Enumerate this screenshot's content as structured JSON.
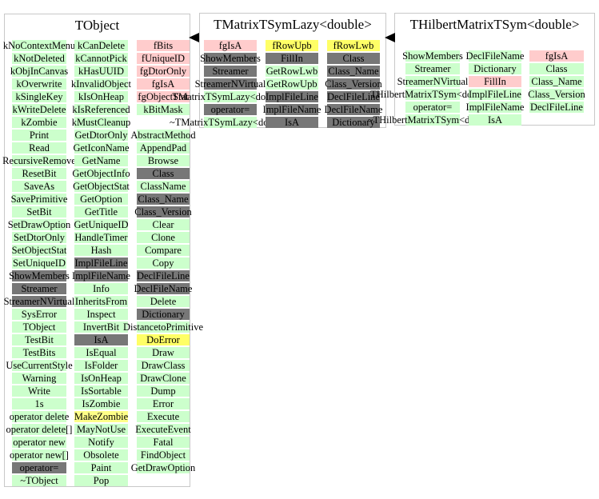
{
  "colors": {
    "function": "#ccffcc",
    "data_member": "#ffcccc",
    "inherited": "#777777",
    "overridden": "#ffff66",
    "box_border": "#c8c8c8"
  },
  "classes": [
    {
      "id": "tobject",
      "title": "TObject",
      "columns": [
        [
          {
            "t": "enum",
            "text": "kNoContextMenu"
          },
          {
            "t": "enum",
            "text": "kNotDeleted"
          },
          {
            "t": "enum",
            "text": "kObjInCanvas"
          },
          {
            "t": "enum",
            "text": "kOverwrite"
          },
          {
            "t": "enum",
            "text": "kSingleKey"
          },
          {
            "t": "enum",
            "text": "kWriteDelete"
          },
          {
            "t": "enum",
            "text": "kZombie"
          },
          {
            "t": "func",
            "text": "Print"
          },
          {
            "t": "func",
            "text": "Read"
          },
          {
            "t": "func",
            "text": "RecursiveRemove"
          },
          {
            "t": "func",
            "text": "ResetBit"
          },
          {
            "t": "func",
            "text": "SaveAs"
          },
          {
            "t": "func",
            "text": "SavePrimitive"
          },
          {
            "t": "func",
            "text": "SetBit"
          },
          {
            "t": "func",
            "text": "SetDrawOption"
          },
          {
            "t": "func",
            "text": "SetDtorOnly"
          },
          {
            "t": "func",
            "text": "SetObjectStat"
          },
          {
            "t": "func",
            "text": "SetUniqueID"
          },
          {
            "t": "inh",
            "text": "ShowMembers"
          },
          {
            "t": "inh",
            "text": "Streamer"
          },
          {
            "t": "inh",
            "text": "StreamerNVirtual"
          },
          {
            "t": "func",
            "text": "SysError"
          },
          {
            "t": "func",
            "text": "TObject"
          },
          {
            "t": "func",
            "text": "TestBit"
          },
          {
            "t": "func",
            "text": "TestBits"
          },
          {
            "t": "func",
            "text": "UseCurrentStyle"
          },
          {
            "t": "func",
            "text": "Warning"
          },
          {
            "t": "func",
            "text": "Write"
          },
          {
            "t": "func",
            "text": "1s"
          },
          {
            "t": "func",
            "text": "operator delete"
          },
          {
            "t": "func",
            "text": "operator delete[]"
          },
          {
            "t": "func",
            "text": "operator new"
          },
          {
            "t": "func",
            "text": "operator new[]"
          },
          {
            "t": "inh",
            "text": "operator="
          },
          {
            "t": "func",
            "text": "~TObject"
          }
        ],
        [
          {
            "t": "enum",
            "text": "kCanDelete"
          },
          {
            "t": "enum",
            "text": "kCannotPick"
          },
          {
            "t": "enum",
            "text": "kHasUUID"
          },
          {
            "t": "enum",
            "text": "kInvalidObject"
          },
          {
            "t": "enum",
            "text": "kIsOnHeap"
          },
          {
            "t": "enum",
            "text": "kIsReferenced"
          },
          {
            "t": "enum",
            "text": "kMustCleanup"
          },
          {
            "t": "func",
            "text": "GetDtorOnly"
          },
          {
            "t": "func",
            "text": "GetIconName"
          },
          {
            "t": "func",
            "text": "GetName"
          },
          {
            "t": "func",
            "text": "GetObjectInfo"
          },
          {
            "t": "func",
            "text": "GetObjectStat"
          },
          {
            "t": "func",
            "text": "GetOption"
          },
          {
            "t": "func",
            "text": "GetTitle"
          },
          {
            "t": "func",
            "text": "GetUniqueID"
          },
          {
            "t": "func",
            "text": "HandleTimer"
          },
          {
            "t": "func",
            "text": "Hash"
          },
          {
            "t": "inh",
            "text": "ImplFileLine"
          },
          {
            "t": "inh",
            "text": "ImplFileName"
          },
          {
            "t": "func",
            "text": "Info"
          },
          {
            "t": "func",
            "text": "InheritsFrom"
          },
          {
            "t": "func",
            "text": "Inspect"
          },
          {
            "t": "func",
            "text": "InvertBit"
          },
          {
            "t": "inh",
            "text": "IsA"
          },
          {
            "t": "func",
            "text": "IsEqual"
          },
          {
            "t": "func",
            "text": "IsFolder"
          },
          {
            "t": "func",
            "text": "IsOnHeap"
          },
          {
            "t": "func",
            "text": "IsSortable"
          },
          {
            "t": "func",
            "text": "IsZombie"
          },
          {
            "t": "hl",
            "text": "MakeZombie"
          },
          {
            "t": "func",
            "text": "MayNotUse"
          },
          {
            "t": "func",
            "text": "Notify"
          },
          {
            "t": "func",
            "text": "Obsolete"
          },
          {
            "t": "func",
            "text": "Paint"
          },
          {
            "t": "func",
            "text": "Pop"
          }
        ],
        [
          {
            "t": "data",
            "text": "fBits"
          },
          {
            "t": "data",
            "text": "fUniqueID"
          },
          {
            "t": "data",
            "text": "fgDtorOnly"
          },
          {
            "t": "data",
            "text": "fgIsA"
          },
          {
            "t": "data",
            "text": "fgObjectStat"
          },
          {
            "t": "func",
            "text": "kBitMask"
          },
          {
            "t": "none",
            "text": ""
          },
          {
            "t": "func",
            "text": "AbstractMethod"
          },
          {
            "t": "func",
            "text": "AppendPad"
          },
          {
            "t": "func",
            "text": "Browse"
          },
          {
            "t": "inh",
            "text": "Class"
          },
          {
            "t": "func",
            "text": "ClassName"
          },
          {
            "t": "inh",
            "text": "Class_Name"
          },
          {
            "t": "inh",
            "text": "Class_Version"
          },
          {
            "t": "func",
            "text": "Clear"
          },
          {
            "t": "func",
            "text": "Clone"
          },
          {
            "t": "func",
            "text": "Compare"
          },
          {
            "t": "func",
            "text": "Copy"
          },
          {
            "t": "inh",
            "text": "DeclFileLine"
          },
          {
            "t": "inh",
            "text": "DeclFileName"
          },
          {
            "t": "func",
            "text": "Delete"
          },
          {
            "t": "inh",
            "text": "Dictionary"
          },
          {
            "t": "func",
            "text": "DistancetoPrimitive"
          },
          {
            "t": "pure",
            "text": "DoError"
          },
          {
            "t": "func",
            "text": "Draw"
          },
          {
            "t": "func",
            "text": "DrawClass"
          },
          {
            "t": "func",
            "text": "DrawClone"
          },
          {
            "t": "func",
            "text": "Dump"
          },
          {
            "t": "func",
            "text": "Error"
          },
          {
            "t": "func",
            "text": "Execute"
          },
          {
            "t": "func",
            "text": "ExecuteEvent"
          },
          {
            "t": "func",
            "text": "Fatal"
          },
          {
            "t": "func",
            "text": "FindObject"
          },
          {
            "t": "func",
            "text": "GetDrawOption"
          }
        ]
      ]
    },
    {
      "id": "tmatrixlazy",
      "title": "TMatrixTSymLazy<double>",
      "columns": [
        [
          {
            "t": "data",
            "text": "fgIsA"
          },
          {
            "t": "inh",
            "text": "ShowMembers"
          },
          {
            "t": "inh",
            "text": "Streamer"
          },
          {
            "t": "inh",
            "text": "StreamerNVirtual"
          },
          {
            "t": "func",
            "text": "TMatrixTSymLazy<double>"
          },
          {
            "t": "inh",
            "text": "operator="
          },
          {
            "t": "func",
            "text": "~TMatrixTSymLazy<double>"
          }
        ],
        [
          {
            "t": "pure",
            "text": "fRowUpb"
          },
          {
            "t": "inh",
            "text": "FillIn"
          },
          {
            "t": "func",
            "text": "GetRowLwb"
          },
          {
            "t": "func",
            "text": "GetRowUpb"
          },
          {
            "t": "inh",
            "text": "ImplFileLine"
          },
          {
            "t": "inh",
            "text": "ImplFileName"
          },
          {
            "t": "inh",
            "text": "IsA"
          }
        ],
        [
          {
            "t": "pure",
            "text": "fRowLwb"
          },
          {
            "t": "inh",
            "text": "Class"
          },
          {
            "t": "inh",
            "text": "Class_Name"
          },
          {
            "t": "inh",
            "text": "Class_Version"
          },
          {
            "t": "inh",
            "text": "DeclFileLine"
          },
          {
            "t": "inh",
            "text": "DeclFileName"
          },
          {
            "t": "inh",
            "text": "Dictionary"
          }
        ]
      ]
    },
    {
      "id": "thilbert",
      "title": "THilbertMatrixTSym<double>",
      "columns": [
        [
          {
            "t": "func",
            "text": "ShowMembers"
          },
          {
            "t": "func",
            "text": "Streamer"
          },
          {
            "t": "func",
            "text": "StreamerNVirtual"
          },
          {
            "t": "func",
            "text": "THilbertMatrixTSym<double>"
          },
          {
            "t": "func",
            "text": "operator="
          },
          {
            "t": "func",
            "text": "~THilbertMatrixTSym<double>"
          }
        ],
        [
          {
            "t": "func",
            "text": "DeclFileName"
          },
          {
            "t": "func",
            "text": "Dictionary"
          },
          {
            "t": "data",
            "text": "FillIn"
          },
          {
            "t": "func",
            "text": "ImplFileLine"
          },
          {
            "t": "func",
            "text": "ImplFileName"
          },
          {
            "t": "func",
            "text": "IsA"
          }
        ],
        [
          {
            "t": "data",
            "text": "fgIsA"
          },
          {
            "t": "func",
            "text": "Class"
          },
          {
            "t": "func",
            "text": "Class_Name"
          },
          {
            "t": "func",
            "text": "Class_Version"
          },
          {
            "t": "func",
            "text": "DeclFileLine"
          }
        ]
      ]
    }
  ]
}
